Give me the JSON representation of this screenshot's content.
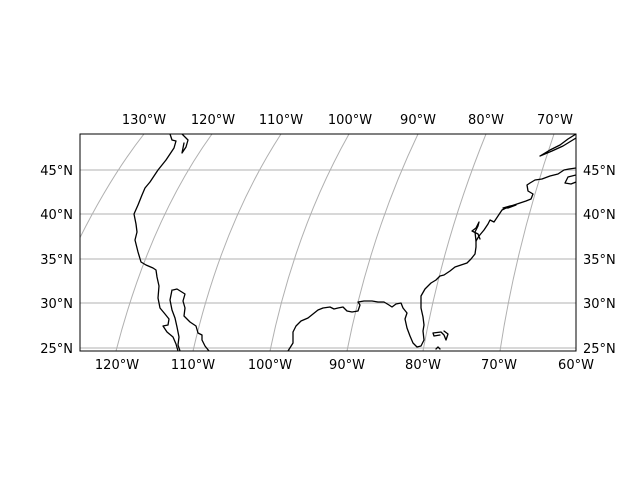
{
  "map": {
    "projection": "rotated lat-lon (curved meridians)",
    "extent": {
      "lon_min": -125,
      "lon_max": -60,
      "lat_min": 25,
      "lat_max": 49
    },
    "gridlines": true,
    "gridline_color": "#b0b0b0",
    "coastline_color": "#000000",
    "top_lon_labels": [
      "130°W",
      "120°W",
      "110°W",
      "100°W",
      "90°W",
      "80°W",
      "70°W"
    ],
    "bottom_lon_labels": [
      "120°W",
      "110°W",
      "100°W",
      "90°W",
      "80°W",
      "70°W",
      "60°W"
    ],
    "left_lat_labels": [
      "45°N",
      "40°N",
      "35°N",
      "30°N",
      "25°N"
    ],
    "right_lat_labels": [
      "45°N",
      "40°N",
      "35°N",
      "30°N",
      "25°N"
    ]
  }
}
